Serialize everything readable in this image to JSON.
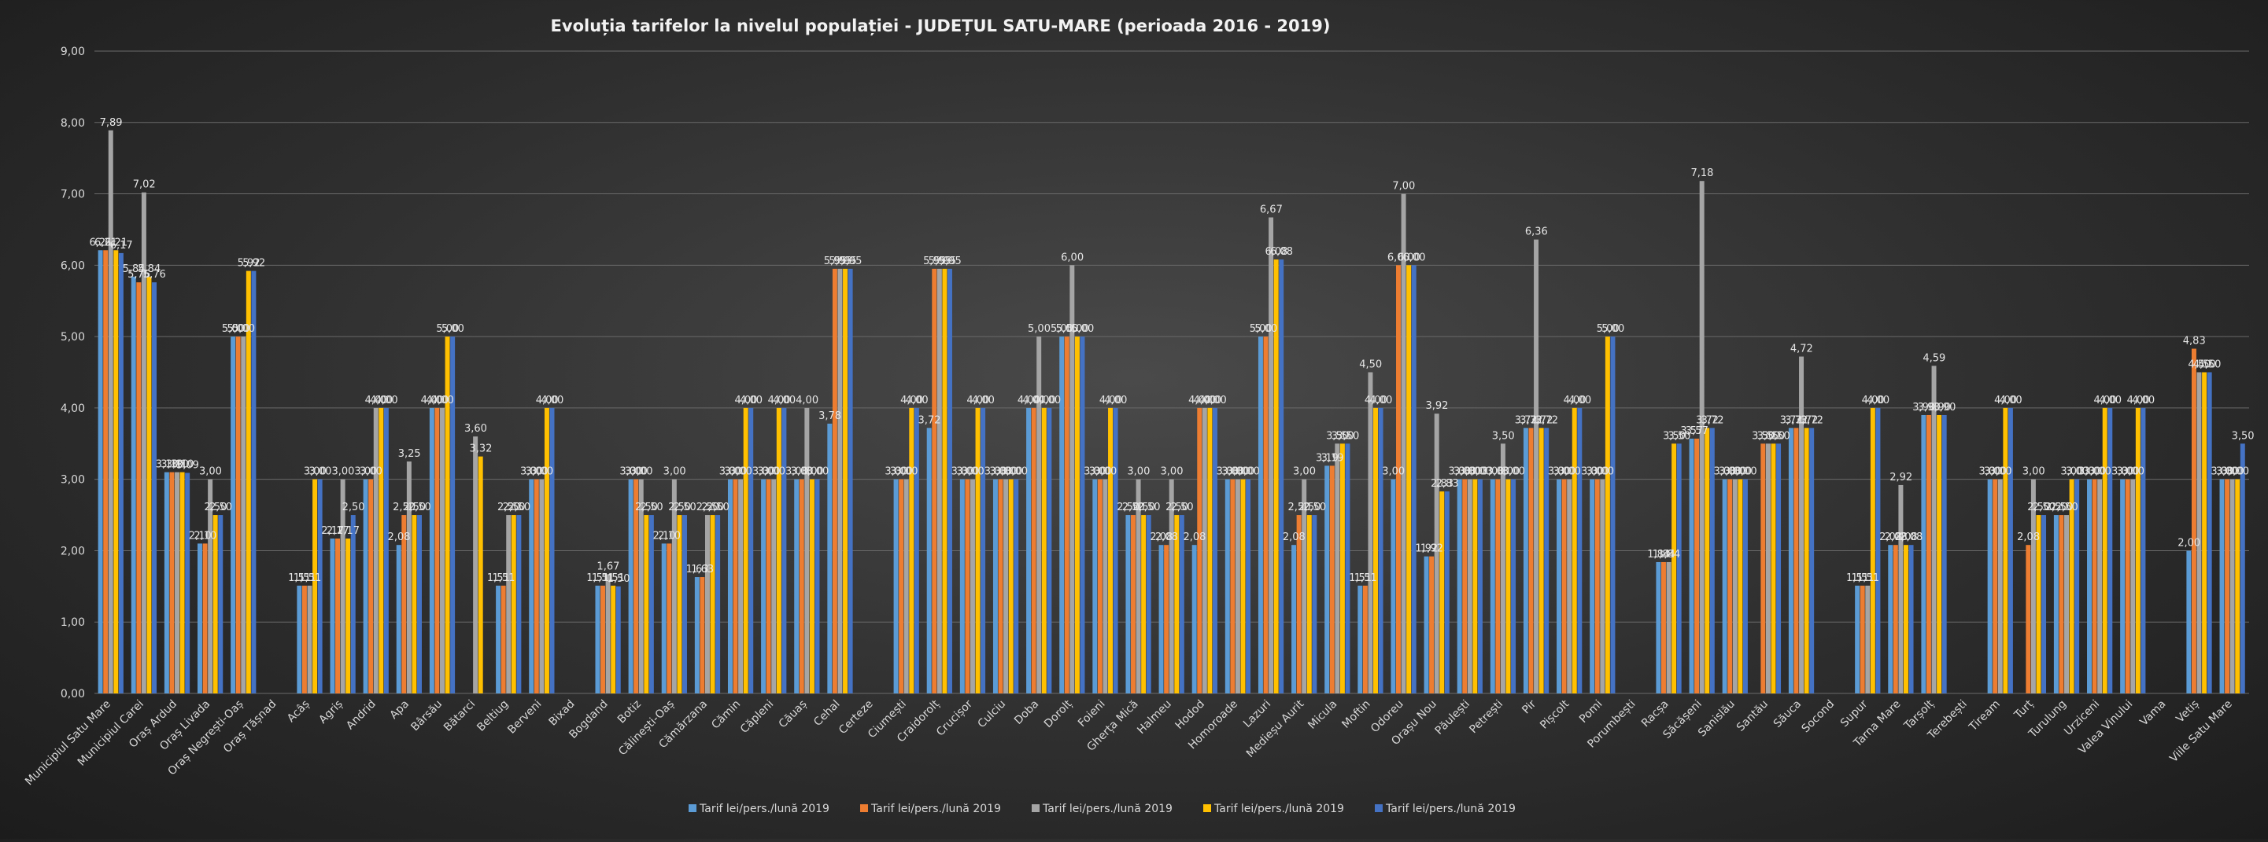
{
  "chart_data": {
    "type": "bar",
    "title": "Evoluția tarifelor la nivelul populației - JUDEȚUL SATU-MARE (perioada 2016 - 2019)",
    "xlabel": "",
    "ylabel": "",
    "ylim": [
      0,
      9
    ],
    "yticks": [
      "0,00",
      "1,00",
      "2,00",
      "3,00",
      "4,00",
      "5,00",
      "6,00",
      "7,00",
      "8,00",
      "9,00"
    ],
    "grid": true,
    "legend_position": "bottom",
    "categories": [
      "Municipiul Satu Mare",
      "Municipiul Carei",
      "Oraș Ardud",
      "Oraș Livada",
      "Oraș Negrești-Oaș",
      "Oraș Tășnad",
      "Acâș",
      "Agriș",
      "Andrid",
      "Apa",
      "Bârsău",
      "Bătarci",
      "Beltiug",
      "Berveni",
      "Bixad",
      "Bogdand",
      "Botiz",
      "Călinești-Oaș",
      "Cămărzana",
      "Cămin",
      "Căpleni",
      "Căuaș",
      "Cehal",
      "Certeze",
      "Ciumești",
      "Craidorolț",
      "Crucișor",
      "Culciu",
      "Doba",
      "Dorolț",
      "Foieni",
      "Gherța Mică",
      "Halmeu",
      "Hodod",
      "Homoroade",
      "Lazuri",
      "Medieșu Aurit",
      "Micula",
      "Moftin",
      "Odoreu",
      "Orașu Nou",
      "Păulești",
      "Petrești",
      "Pir",
      "Pișcolt",
      "Pomi",
      "Porumbești",
      "Racșa",
      "Săcășeni",
      "Sanislău",
      "Santău",
      "Săuca",
      "Socond",
      "Supur",
      "Tarna Mare",
      "Tarșolț",
      "Terebești",
      "Tiream",
      "Turț",
      "Turulung",
      "Urziceni",
      "Valea Vinului",
      "Vama",
      "Vetiș",
      "Viile Satu Mare"
    ],
    "category_labels": [
      "Municipiul Satu Mare",
      "Municipiul Carei",
      "Oraș Ardud",
      "Oraș Livada",
      "Oraș Negrești-Oaș",
      "Oraș Tășnad",
      "Acâș",
      "Agriș",
      "Andrid",
      "Apa",
      "Bârsău",
      "Bătarci",
      "Beltiug",
      "Berveni",
      "Bixad",
      "Bogdand",
      "Botiz",
      "Călinești-Oaș",
      "Cămărzana",
      "Cămin",
      "Căpleni",
      "Căuaș",
      "Cehal",
      "Certeze",
      "Ciumești",
      "Craidorolț",
      "Crucișor",
      "Culciu",
      "Doba",
      "Dorolț",
      "Foieni",
      "Gherța Mică",
      "Halmeu",
      "Hodod",
      "Homoroade",
      "Lazuri",
      "Medieșu Aurit",
      "Micula",
      "Moftin",
      "Odoreu",
      "Orașu Nou",
      "Păulești",
      "Petrești",
      "Pir",
      "Pișcolt",
      "Pomi",
      "Porumbești",
      "Racșa",
      "Săcășeni",
      "Sanislău",
      "Santău",
      "Săuca",
      "Socond",
      "Supur",
      "Tarna Mare",
      "Tarșolț",
      "Terebești",
      "Tiream",
      "Turț",
      "Turulung",
      "Urziceni",
      "Valea Vinului",
      "Vama",
      "Vetiș",
      "Viile Satu Mare"
    ],
    "series": [
      {
        "name": "Tarif lei/pers./lună 2019",
        "color": "#5b9bd5",
        "values": [
          6.21,
          5.84,
          3.1,
          2.1,
          5.0,
          null,
          1.51,
          2.17,
          3.0,
          2.08,
          4.0,
          null,
          1.51,
          3.0,
          null,
          1.51,
          3.0,
          2.1,
          1.63,
          3.0,
          3.0,
          3.0,
          3.78,
          null,
          3.0,
          3.72,
          3.0,
          3.0,
          4.0,
          5.0,
          3.0,
          2.5,
          2.08,
          2.08,
          3.0,
          5.0,
          2.08,
          3.19,
          1.51,
          3.0,
          1.92,
          3.0,
          3.0,
          3.72,
          3.0,
          3.0,
          null,
          1.84,
          3.57,
          3.0,
          null,
          3.72,
          null,
          1.51,
          2.08,
          3.9,
          null,
          3.0,
          null,
          2.5,
          3.0,
          3.0,
          null,
          2.0,
          3.0
        ]
      },
      {
        "name": "Tarif lei/pers./lună 2019",
        "color": "#ed7d31",
        "values": [
          6.21,
          5.76,
          3.1,
          2.1,
          5.0,
          null,
          1.51,
          2.17,
          3.0,
          2.5,
          4.0,
          null,
          1.51,
          3.0,
          null,
          1.51,
          3.0,
          2.1,
          1.63,
          3.0,
          3.0,
          3.0,
          5.95,
          null,
          3.0,
          5.95,
          3.0,
          3.0,
          4.0,
          5.0,
          3.0,
          2.5,
          2.08,
          4.0,
          3.0,
          5.0,
          2.5,
          3.19,
          1.51,
          6.0,
          1.92,
          3.0,
          3.0,
          3.72,
          3.0,
          3.0,
          null,
          1.84,
          3.57,
          3.0,
          3.5,
          3.72,
          null,
          1.51,
          2.08,
          3.9,
          null,
          3.0,
          2.08,
          2.5,
          3.0,
          3.0,
          null,
          4.83,
          3.0
        ]
      },
      {
        "name": "Tarif lei/pers./lună 2019",
        "color": "#a5a5a5",
        "values": [
          7.89,
          7.02,
          3.1,
          3.0,
          5.0,
          null,
          1.51,
          3.0,
          4.0,
          3.25,
          4.0,
          3.6,
          2.5,
          3.0,
          null,
          1.67,
          3.0,
          3.0,
          2.5,
          3.0,
          3.0,
          4.0,
          5.95,
          null,
          3.0,
          5.95,
          3.0,
          3.0,
          5.0,
          6.0,
          3.0,
          3.0,
          3.0,
          4.0,
          3.0,
          6.67,
          3.0,
          3.5,
          4.5,
          7.0,
          3.92,
          3.0,
          3.5,
          6.36,
          3.0,
          3.0,
          null,
          1.84,
          7.18,
          3.0,
          3.5,
          4.72,
          null,
          1.51,
          2.92,
          4.59,
          null,
          3.0,
          3.0,
          2.5,
          3.0,
          3.0,
          null,
          4.5,
          3.0
        ]
      },
      {
        "name": "Tarif lei/pers./lună 2019",
        "color": "#ffc000",
        "values": [
          6.21,
          5.84,
          3.1,
          2.5,
          5.92,
          null,
          3.0,
          2.17,
          4.0,
          2.5,
          5.0,
          3.32,
          2.5,
          4.0,
          null,
          1.51,
          2.5,
          2.5,
          2.5,
          4.0,
          4.0,
          3.0,
          5.95,
          null,
          4.0,
          5.95,
          4.0,
          3.0,
          4.0,
          5.0,
          4.0,
          2.5,
          2.5,
          4.0,
          3.0,
          6.08,
          2.5,
          3.5,
          4.0,
          6.0,
          2.83,
          3.0,
          3.0,
          3.72,
          4.0,
          5.0,
          null,
          3.5,
          3.72,
          3.0,
          3.5,
          3.72,
          null,
          4.0,
          2.08,
          3.9,
          null,
          4.0,
          2.5,
          3.0,
          4.0,
          4.0,
          null,
          4.5,
          3.0
        ]
      },
      {
        "name": "Tarif lei/pers./lună 2019",
        "color": "#4472c4",
        "values": [
          6.17,
          5.76,
          3.09,
          2.5,
          5.92,
          null,
          3.0,
          2.5,
          4.0,
          2.5,
          5.0,
          null,
          2.5,
          4.0,
          null,
          1.5,
          2.5,
          2.5,
          2.5,
          4.0,
          4.0,
          3.0,
          5.95,
          null,
          4.0,
          5.95,
          4.0,
          3.0,
          4.0,
          5.0,
          4.0,
          2.5,
          2.5,
          4.0,
          3.0,
          6.08,
          2.5,
          3.5,
          4.0,
          6.0,
          2.83,
          3.0,
          3.0,
          3.72,
          4.0,
          5.0,
          null,
          3.5,
          3.72,
          3.0,
          3.5,
          3.72,
          null,
          4.0,
          2.08,
          3.9,
          null,
          4.0,
          2.5,
          3.0,
          4.0,
          4.0,
          null,
          4.5,
          3.5
        ]
      }
    ]
  }
}
